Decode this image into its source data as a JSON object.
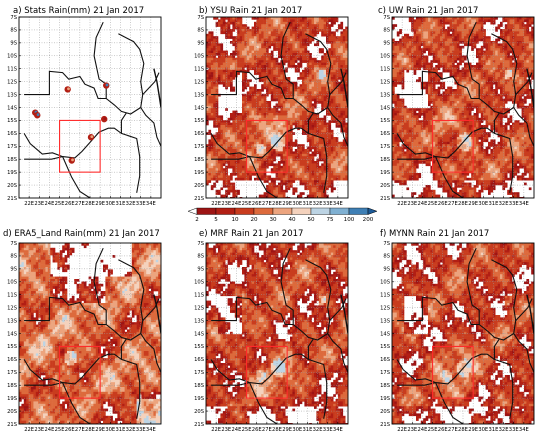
{
  "chart_data": [
    {
      "type": "heatmap",
      "title": "a) Stats Rain(mm) 21 Jan 2017",
      "panel": "a",
      "kind": "stations",
      "stations": [
        [
          22.6,
          -14.4,
          "high"
        ],
        [
          22.8,
          -14.6,
          "high"
        ],
        [
          25.8,
          -12.6,
          "mid"
        ],
        [
          29.6,
          -12.3,
          "high"
        ],
        [
          29.4,
          -14.9,
          "low"
        ],
        [
          28.1,
          -16.3,
          "mid"
        ],
        [
          26.2,
          -18.1,
          "mid"
        ]
      ],
      "domain_box": {
        "lon": [
          25,
          29
        ],
        "lat": [
          -19,
          -15
        ]
      },
      "xlim": [
        21,
        35
      ],
      "ylim": [
        -21,
        -7
      ]
    },
    {
      "type": "heatmap",
      "title": "b) YSU Rain 21 Jan 2017",
      "panel": "b",
      "kind": "model",
      "domain_box": {
        "lon": [
          25,
          29
        ],
        "lat": [
          -19,
          -15
        ]
      }
    },
    {
      "type": "heatmap",
      "title": "c) UW Rain 21 Jan 2017",
      "panel": "c",
      "kind": "model",
      "domain_box": {
        "lon": [
          25,
          29
        ],
        "lat": [
          -19,
          -15
        ]
      }
    },
    {
      "type": "heatmap",
      "title": "d) ERA5_Land Rain(mm) 21 Jan 2017",
      "panel": "d",
      "kind": "era5",
      "domain_box": {
        "lon": [
          25,
          29
        ],
        "lat": [
          -19,
          -15
        ]
      }
    },
    {
      "type": "heatmap",
      "title": "e) MRF Rain 21 Jan 2017",
      "panel": "e",
      "kind": "model",
      "domain_box": {
        "lon": [
          25,
          29
        ],
        "lat": [
          -19,
          -15
        ]
      }
    },
    {
      "type": "heatmap",
      "title": "f) MYNN Rain 21 Jan 2017",
      "panel": "f",
      "kind": "model",
      "domain_box": {
        "lon": [
          25,
          29
        ],
        "lat": [
          -19,
          -15
        ]
      }
    }
  ],
  "axes": {
    "y_ticks": [
      "7S",
      "8S",
      "9S",
      "10S",
      "11S",
      "12S",
      "13S",
      "14S",
      "15S",
      "16S",
      "17S",
      "18S",
      "19S",
      "20S",
      "21S"
    ],
    "x_ticks": [
      "22E",
      "23E",
      "24E",
      "25E",
      "26E",
      "27E",
      "28E",
      "29E",
      "30E",
      "31E",
      "32E",
      "33E",
      "34E"
    ]
  },
  "colorbar": {
    "levels": [
      "2",
      "5",
      "10",
      "20",
      "30",
      "40",
      "50",
      "75",
      "100",
      "200"
    ],
    "colors": [
      "#9d1414",
      "#b21f14",
      "#c93c1e",
      "#dd6a3c",
      "#eca47e",
      "#f4d2bd",
      "#bdd4e4",
      "#7fb0d2",
      "#3e7fb5"
    ],
    "under_color": "#ffffff",
    "over_color": "#1b5a98"
  }
}
